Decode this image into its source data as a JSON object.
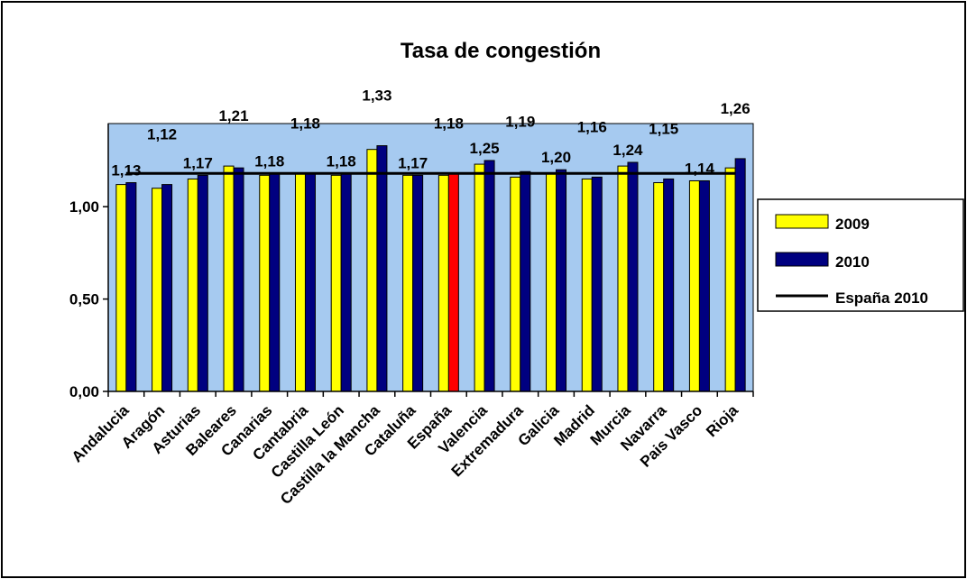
{
  "chart_data": {
    "type": "bar",
    "title": "Tasa de congestión",
    "categories": [
      "Andalucia",
      "Aragón",
      "Asturias",
      "Baleares",
      "Canarias",
      "Cantabria",
      "Castilla León",
      "Castilla la Mancha",
      "Cataluña",
      "España",
      "Valencia",
      "Extremadura",
      "Galicia",
      "Madrid",
      "Murcia",
      "Navarra",
      "Pais Vasco",
      "Rioja"
    ],
    "series": [
      {
        "name": "2009",
        "color": "#ffff00",
        "values": [
          1.12,
          1.1,
          1.15,
          1.22,
          1.17,
          1.18,
          1.17,
          1.31,
          1.17,
          1.17,
          1.23,
          1.16,
          1.18,
          1.15,
          1.22,
          1.13,
          1.14,
          1.21
        ]
      },
      {
        "name": "2010",
        "color": "#000080",
        "values": [
          1.13,
          1.12,
          1.17,
          1.21,
          1.18,
          1.18,
          1.18,
          1.33,
          1.17,
          1.18,
          1.25,
          1.19,
          1.2,
          1.16,
          1.24,
          1.15,
          1.14,
          1.26
        ]
      }
    ],
    "value_labels": [
      "1,13",
      "1,12",
      "1,17",
      "1,21",
      "1,18",
      "1,18",
      "1,18",
      "1,33",
      "1,17",
      "1,18",
      "1,25",
      "1,19",
      "1,20",
      "1,16",
      "1,24",
      "1,15",
      "1,14",
      "1,26"
    ],
    "highlight": {
      "category": "España",
      "series": "2010",
      "color": "#ff0000"
    },
    "reference_line": {
      "name": "España 2010",
      "value": 1.18,
      "color": "#000000"
    },
    "yticks": [
      0,
      0.5,
      1.0
    ],
    "ytick_labels": [
      "0,00",
      "0,50",
      "1,00"
    ],
    "ylim": [
      0,
      1.45
    ],
    "plot_background": "#a6caf0",
    "grid": false,
    "legend_position": "right"
  }
}
